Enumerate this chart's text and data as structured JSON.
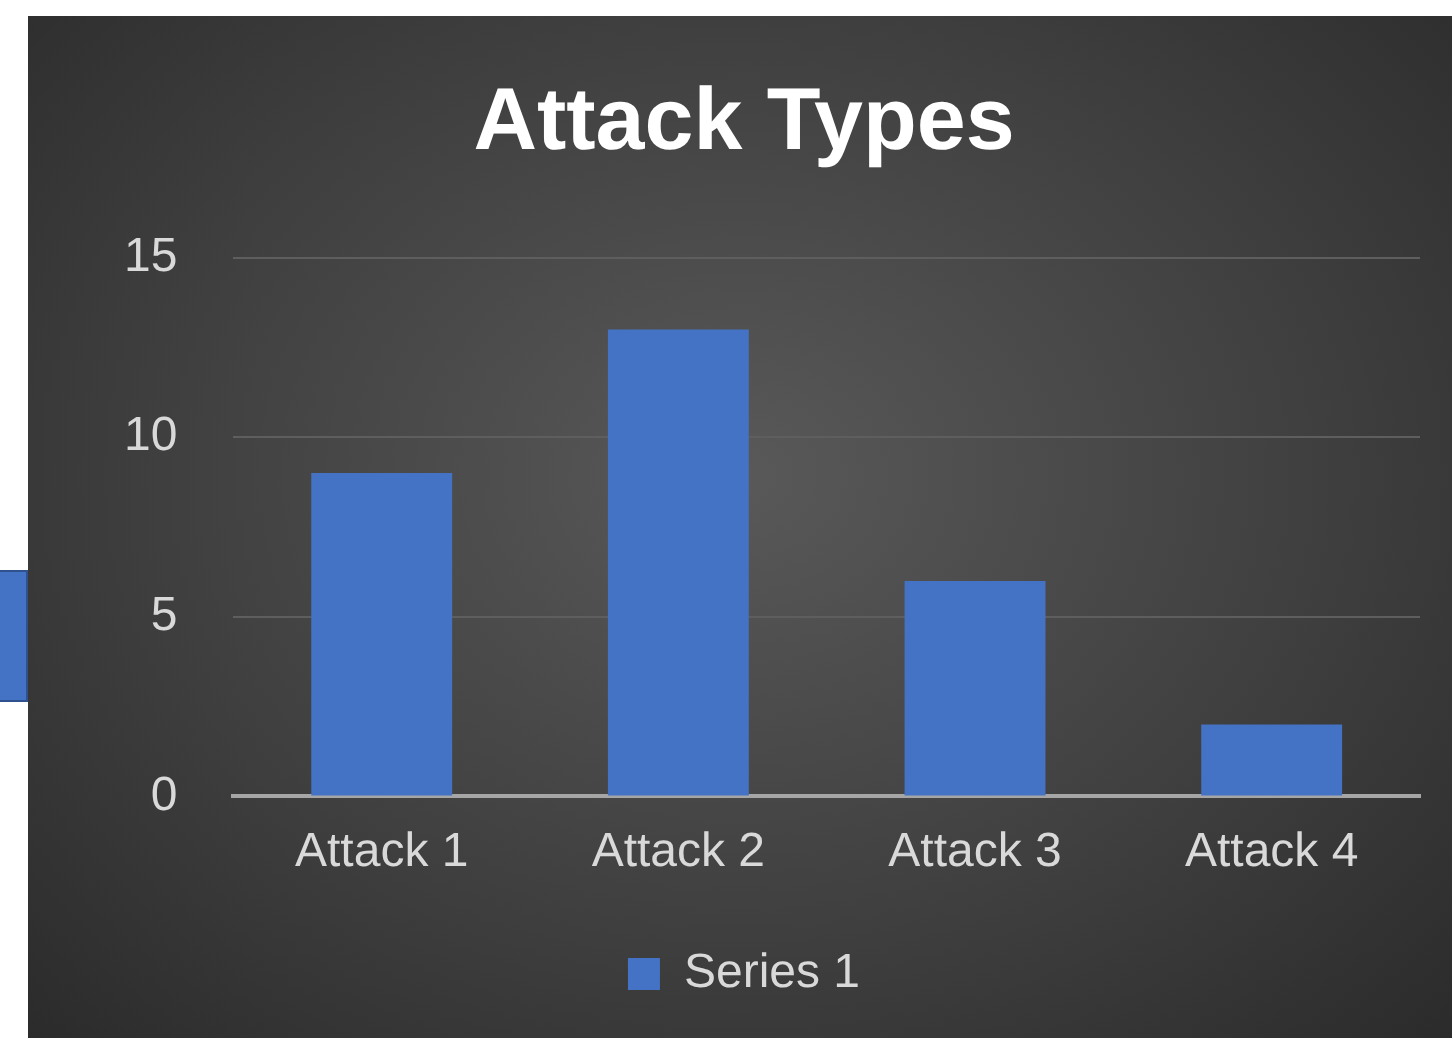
{
  "chart_data": {
    "type": "bar",
    "title": "Attack Types",
    "categories": [
      "Attack 1",
      "Attack 2",
      "Attack 3",
      "Attack 4"
    ],
    "series": [
      {
        "name": "Series 1",
        "color": "#4472c4",
        "values": [
          9,
          13,
          6,
          2
        ]
      }
    ],
    "ylim": [
      0,
      15
    ],
    "yticks": [
      0,
      5,
      10,
      15
    ],
    "grid": "y",
    "legend": "bottom"
  }
}
